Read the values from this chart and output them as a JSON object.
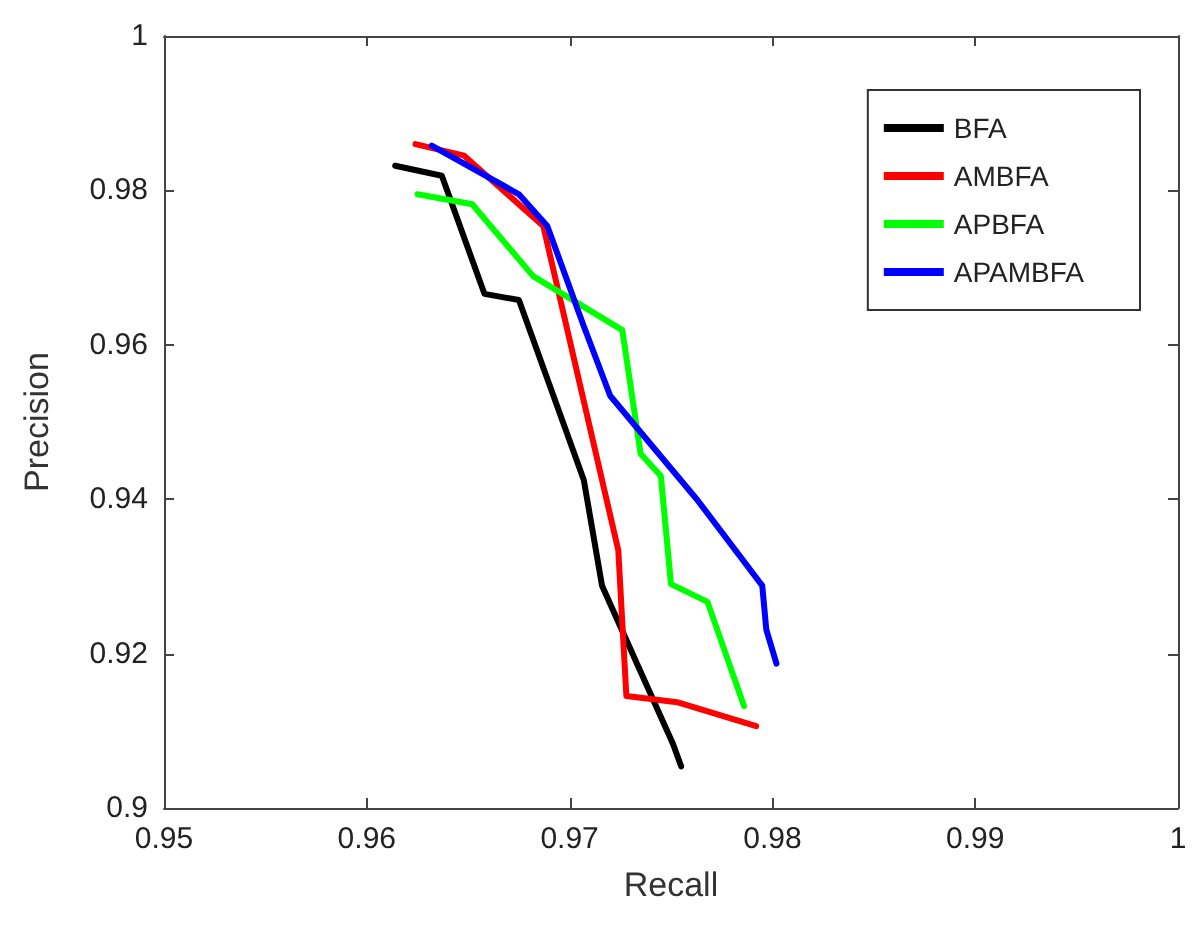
{
  "chart_data": {
    "type": "line",
    "xlabel": "Recall",
    "ylabel": "Precision",
    "xlim": [
      0.95,
      1
    ],
    "xticks": [
      0.95,
      0.96,
      0.97,
      0.98,
      0.99,
      1
    ],
    "ylim": [
      0.9,
      1
    ],
    "yticks": [
      0.9,
      0.92,
      0.94,
      0.96,
      0.98,
      1
    ],
    "grid": false,
    "legend": "top right",
    "marker": "none",
    "line_style": "solid",
    "series": [
      {
        "name": "BFA",
        "color": "#000000",
        "x": [
          0.9614,
          0.9637,
          0.9658,
          0.9675,
          0.9707,
          0.9716,
          0.9751,
          0.9755
        ],
        "values": [
          0.9832,
          0.9819,
          0.9666,
          0.9658,
          0.9425,
          0.9288,
          0.9083,
          0.9054
        ]
      },
      {
        "name": "AMBFA",
        "color": "#ff0000",
        "x": [
          0.9624,
          0.9648,
          0.9687,
          0.9724,
          0.9728,
          0.9753,
          0.9792
        ],
        "values": [
          0.986,
          0.9845,
          0.9754,
          0.9334,
          0.9145,
          0.9137,
          0.9106
        ]
      },
      {
        "name": "APBFA",
        "color": "#00ff00",
        "x": [
          0.9625,
          0.9652,
          0.9682,
          0.9726,
          0.9735,
          0.9745,
          0.975,
          0.9768,
          0.9786
        ],
        "values": [
          0.9795,
          0.9782,
          0.9689,
          0.9619,
          0.9459,
          0.943,
          0.929,
          0.9267,
          0.9132
        ]
      },
      {
        "name": "APAMBFA",
        "color": "#0000ff",
        "x": [
          0.9632,
          0.9675,
          0.9689,
          0.9707,
          0.972,
          0.9763,
          0.9795,
          0.9797,
          0.9802
        ],
        "values": [
          0.9858,
          0.9795,
          0.9754,
          0.9624,
          0.9534,
          0.9399,
          0.9288,
          0.9231,
          0.9187
        ]
      }
    ]
  }
}
